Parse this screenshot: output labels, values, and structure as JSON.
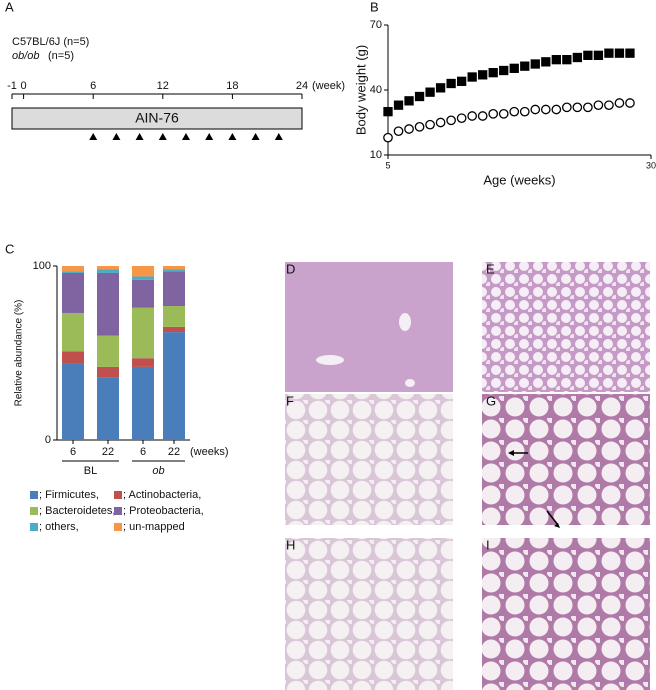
{
  "panels": [
    "A",
    "B",
    "C",
    "D",
    "E",
    "F",
    "G",
    "H",
    "I"
  ],
  "panel_a": {
    "strain1": "C57BL/6J (n=5)",
    "strain2": {
      "name": "ob/ob",
      "n": "(n=5)"
    },
    "ticks": [
      -1,
      0,
      6,
      12,
      18,
      24
    ],
    "unit": "(week)",
    "diet": "AIN-76",
    "marks": [
      6,
      8,
      10,
      12,
      14,
      16,
      18,
      20,
      22
    ]
  },
  "chart_data": [
    {
      "type": "line",
      "xlabel": "Age (weeks)",
      "ylabel": "Body weight (g)",
      "x": [
        5,
        6,
        7,
        8,
        9,
        10,
        11,
        12,
        13,
        14,
        15,
        16,
        17,
        18,
        19,
        20,
        21,
        22,
        23,
        24,
        25,
        26,
        27,
        28
      ],
      "series": [
        {
          "color": "#000000",
          "marker": "square",
          "values": [
            30,
            33,
            35,
            37,
            39,
            41,
            43,
            44,
            46,
            47,
            48,
            49,
            50,
            51,
            52,
            53,
            54,
            54,
            55,
            56,
            56,
            57,
            57,
            57
          ]
        },
        {
          "color": "#ffffff",
          "marker": "circle",
          "values": [
            18,
            21,
            22,
            23,
            24,
            25,
            26,
            27,
            28,
            28,
            29,
            29,
            30,
            30,
            31,
            31,
            31,
            32,
            32,
            32,
            33,
            33,
            34,
            34
          ]
        }
      ],
      "xlim": [
        5,
        30
      ],
      "xticks": [
        5,
        30
      ],
      "ylim": [
        10,
        70
      ],
      "yticks": [
        10,
        40,
        70
      ]
    },
    {
      "type": "stacked_bar",
      "ylabel": "Relative abundance (%)",
      "categories": [
        "6",
        "22",
        "6",
        "22"
      ],
      "groups": [
        "BL",
        "ob"
      ],
      "xunit": "(weeks)",
      "ylim": [
        0,
        100
      ],
      "yticks": [
        0,
        100
      ],
      "series": [
        {
          "name": "; Firmicutes,",
          "color": "#4a7ebb",
          "values": [
            44,
            36,
            42,
            62
          ]
        },
        {
          "name": "; Actinobacteria,",
          "color": "#c0504d",
          "values": [
            7,
            6,
            5,
            3
          ]
        },
        {
          "name": "; Bacteroidetes,",
          "color": "#9bbb59",
          "values": [
            22,
            18,
            29,
            12
          ]
        },
        {
          "name": "; Proteobacteria,",
          "color": "#8064a2",
          "values": [
            23,
            36,
            16,
            20
          ]
        },
        {
          "name": "; others,",
          "color": "#4bacc6",
          "values": [
            1,
            2,
            2,
            1
          ]
        },
        {
          "name": "; un-mapped",
          "color": "#f79646",
          "values": [
            3,
            2,
            6,
            2
          ]
        }
      ]
    }
  ]
}
